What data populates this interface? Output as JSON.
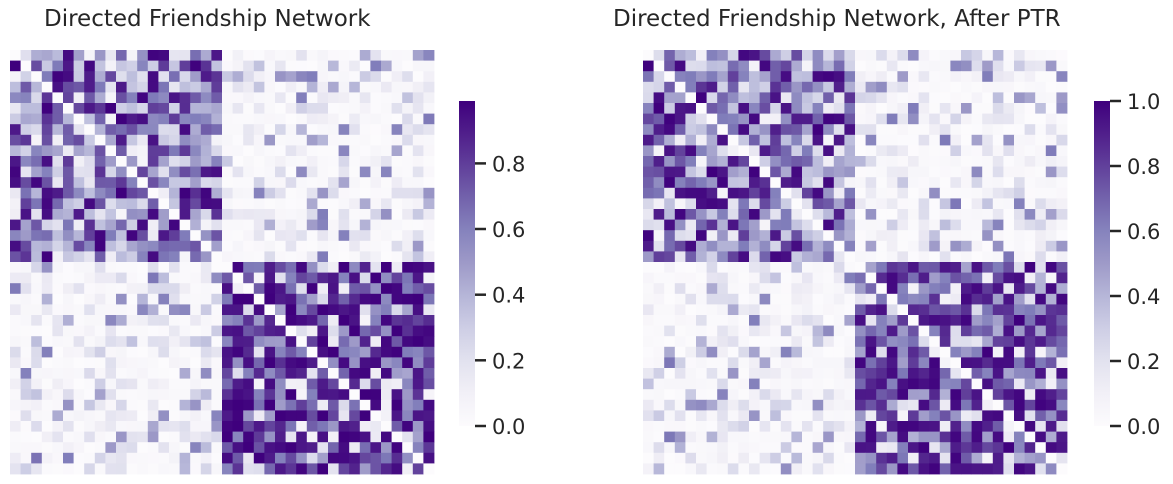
{
  "chart_data": [
    {
      "type": "heatmap",
      "title": "Directed Friendship Network",
      "rows": 40,
      "cols": 40,
      "blocks": [
        {
          "rows": [
            0,
            19
          ],
          "cols": [
            0,
            19
          ],
          "typical_value": 0.55
        },
        {
          "rows": [
            0,
            19
          ],
          "cols": [
            20,
            39
          ],
          "typical_value": 0.1
        },
        {
          "rows": [
            20,
            39
          ],
          "cols": [
            0,
            19
          ],
          "typical_value": 0.1
        },
        {
          "rows": [
            20,
            39
          ],
          "cols": [
            20,
            39
          ],
          "typical_value": 0.75
        }
      ],
      "diagonal_value": 0.0,
      "colormap": "Purples",
      "colorbar": {
        "ticks": [
          "0.0",
          "0.2",
          "0.4",
          "0.6",
          "0.8"
        ],
        "range": [
          0,
          0.99
        ]
      },
      "seed": 17
    },
    {
      "type": "heatmap",
      "title": "Directed Friendship Network, After PTR",
      "rows": 40,
      "cols": 40,
      "blocks": [
        {
          "rows": [
            0,
            19
          ],
          "cols": [
            0,
            19
          ],
          "typical_value": 0.55
        },
        {
          "rows": [
            0,
            19
          ],
          "cols": [
            20,
            39
          ],
          "typical_value": 0.08
        },
        {
          "rows": [
            20,
            39
          ],
          "cols": [
            0,
            19
          ],
          "typical_value": 0.1
        },
        {
          "rows": [
            20,
            39
          ],
          "cols": [
            20,
            39
          ],
          "typical_value": 0.7
        }
      ],
      "diagonal_value": 0.0,
      "colormap": "Purples",
      "colorbar": {
        "ticks": [
          "0.0",
          "0.2",
          "0.4",
          "0.6",
          "0.8",
          "1.0"
        ],
        "range": [
          0,
          1.0
        ]
      },
      "seed": 29
    }
  ]
}
